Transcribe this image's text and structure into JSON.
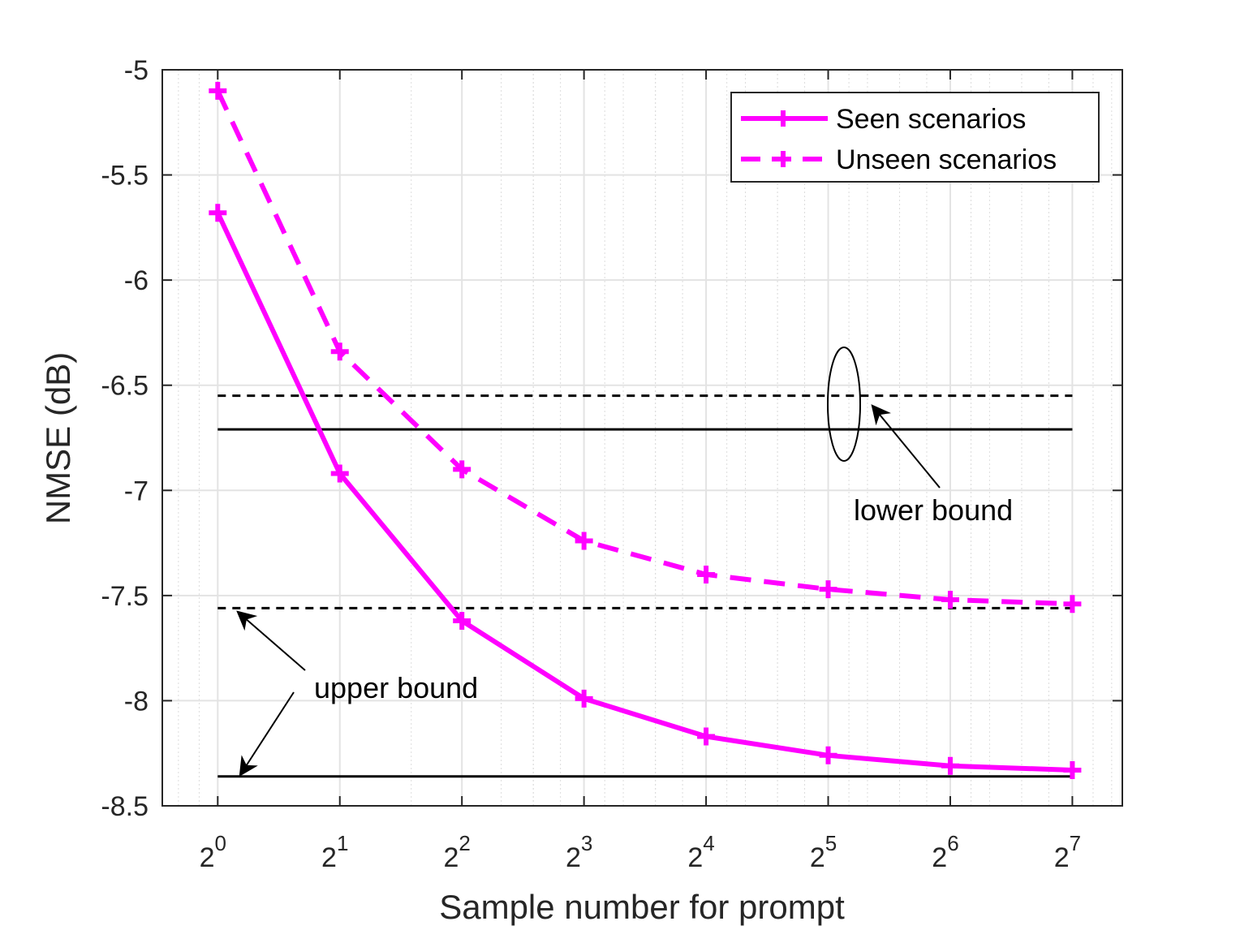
{
  "chart_data": {
    "type": "line",
    "xlabel": "Sample number for prompt",
    "ylabel": "NMSE (dB)",
    "x_scale": "log2",
    "x": [
      1,
      2,
      4,
      8,
      16,
      32,
      64,
      128
    ],
    "x_tick_labels": [
      {
        "base": "2",
        "exp": "0"
      },
      {
        "base": "2",
        "exp": "1"
      },
      {
        "base": "2",
        "exp": "2"
      },
      {
        "base": "2",
        "exp": "3"
      },
      {
        "base": "2",
        "exp": "4"
      },
      {
        "base": "2",
        "exp": "5"
      },
      {
        "base": "2",
        "exp": "6"
      },
      {
        "base": "2",
        "exp": "7"
      }
    ],
    "xlim": [
      0.73,
      170
    ],
    "ylim": [
      -8.5,
      -5
    ],
    "y_ticks": [
      "-5",
      "-5.5",
      "-6",
      "-6.5",
      "-7",
      "-7.5",
      "-8",
      "-8.5"
    ],
    "grid": true,
    "legend_position": "top-right",
    "series": [
      {
        "name": "Seen scenarios",
        "style": "solid",
        "marker": "+",
        "color": "#ff00ff",
        "values": [
          -5.68,
          -6.92,
          -7.62,
          -7.99,
          -8.17,
          -8.26,
          -8.31,
          -8.33
        ]
      },
      {
        "name": "Unseen scenarios",
        "style": "dashed",
        "marker": "+",
        "color": "#ff00ff",
        "values": [
          -5.1,
          -6.34,
          -6.9,
          -7.24,
          -7.4,
          -7.47,
          -7.52,
          -7.54
        ]
      }
    ],
    "reference_lines": [
      {
        "y": -6.55,
        "style": "dashed",
        "color": "#000000"
      },
      {
        "y": -6.71,
        "style": "solid",
        "color": "#000000"
      },
      {
        "y": -7.56,
        "style": "dashed",
        "color": "#000000"
      },
      {
        "y": -8.36,
        "style": "solid",
        "color": "#000000"
      }
    ],
    "annotations": [
      {
        "text": "lower bound"
      },
      {
        "text": "upper bound"
      }
    ]
  }
}
